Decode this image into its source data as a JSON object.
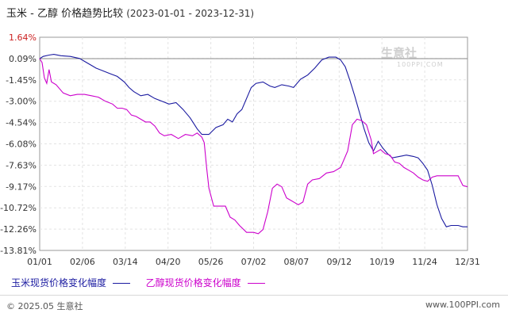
{
  "header": {
    "title": "玉米 - 乙醇 价格趋势比较",
    "range": "(2023-01-01 - 2023-12-31)"
  },
  "watermark": {
    "text": "生意社",
    "sub": "100PPI.COM"
  },
  "legend": {
    "items": [
      {
        "label": "玉米现货价格变化幅度",
        "color": "#1a1aa0"
      },
      {
        "label": "乙醇现货价格变化幅度",
        "color": "#cc00cc"
      }
    ]
  },
  "footer": {
    "left": "© 2025.05 生意社",
    "right": "www.100PPI.com"
  },
  "chart_data": {
    "type": "line",
    "title": "玉米 - 乙醇 价格趋势比较",
    "xlabel": "",
    "ylabel": "",
    "y_ticks": [
      "1.64%",
      "0.09%",
      "-1.45%",
      "-3.00%",
      "-4.54%",
      "-6.08%",
      "-7.63%",
      "-9.17%",
      "-10.72%",
      "-12.26%",
      "-13.81%"
    ],
    "x_ticks": [
      "01/01",
      "02/06",
      "03/14",
      "04/20",
      "05/26",
      "07/02",
      "08/07",
      "09/12",
      "10/19",
      "11/24",
      "12/31"
    ],
    "ylim": [
      -13.81,
      1.64
    ],
    "xlim": [
      0,
      364
    ],
    "reference_line": 0.09,
    "grid": true,
    "series": [
      {
        "name": "玉米现货价格变化幅度",
        "color": "#1a1aa0",
        "points": [
          [
            0,
            0.09
          ],
          [
            3,
            0.25
          ],
          [
            8,
            0.35
          ],
          [
            12,
            0.4
          ],
          [
            18,
            0.3
          ],
          [
            26,
            0.25
          ],
          [
            34,
            0.1
          ],
          [
            40,
            -0.2
          ],
          [
            44,
            -0.4
          ],
          [
            48,
            -0.6
          ],
          [
            54,
            -0.8
          ],
          [
            60,
            -1.0
          ],
          [
            66,
            -1.2
          ],
          [
            72,
            -1.6
          ],
          [
            76,
            -2.0
          ],
          [
            80,
            -2.3
          ],
          [
            86,
            -2.6
          ],
          [
            92,
            -2.5
          ],
          [
            98,
            -2.8
          ],
          [
            104,
            -3.0
          ],
          [
            110,
            -3.2
          ],
          [
            116,
            -3.1
          ],
          [
            122,
            -3.6
          ],
          [
            128,
            -4.2
          ],
          [
            134,
            -5.0
          ],
          [
            138,
            -5.4
          ],
          [
            144,
            -5.4
          ],
          [
            150,
            -4.9
          ],
          [
            156,
            -4.7
          ],
          [
            160,
            -4.3
          ],
          [
            164,
            -4.5
          ],
          [
            168,
            -3.9
          ],
          [
            172,
            -3.6
          ],
          [
            176,
            -2.8
          ],
          [
            180,
            -2.0
          ],
          [
            184,
            -1.7
          ],
          [
            190,
            -1.6
          ],
          [
            196,
            -1.9
          ],
          [
            200,
            -2.0
          ],
          [
            206,
            -1.8
          ],
          [
            212,
            -1.9
          ],
          [
            216,
            -2.0
          ],
          [
            222,
            -1.4
          ],
          [
            228,
            -1.1
          ],
          [
            234,
            -0.6
          ],
          [
            240,
            0.0
          ],
          [
            246,
            0.2
          ],
          [
            252,
            0.2
          ],
          [
            256,
            0.0
          ],
          [
            260,
            -0.5
          ],
          [
            264,
            -1.5
          ],
          [
            268,
            -2.6
          ],
          [
            272,
            -3.8
          ],
          [
            276,
            -5.0
          ],
          [
            280,
            -6.0
          ],
          [
            284,
            -6.6
          ],
          [
            288,
            -5.9
          ],
          [
            292,
            -6.4
          ],
          [
            296,
            -6.8
          ],
          [
            300,
            -7.1
          ],
          [
            306,
            -7.0
          ],
          [
            312,
            -6.9
          ],
          [
            318,
            -7.0
          ],
          [
            322,
            -7.1
          ],
          [
            326,
            -7.5
          ],
          [
            330,
            -8.0
          ],
          [
            334,
            -9.1
          ],
          [
            338,
            -10.5
          ],
          [
            342,
            -11.5
          ],
          [
            346,
            -12.1
          ],
          [
            350,
            -12.0
          ],
          [
            356,
            -12.0
          ],
          [
            360,
            -12.1
          ],
          [
            364,
            -12.1
          ]
        ]
      },
      {
        "name": "乙醇现货价格变化幅度",
        "color": "#cc00cc",
        "points": [
          [
            0,
            0.09
          ],
          [
            2,
            -0.2
          ],
          [
            4,
            -1.3
          ],
          [
            6,
            -1.7
          ],
          [
            8,
            -0.7
          ],
          [
            10,
            -1.6
          ],
          [
            14,
            -1.8
          ],
          [
            20,
            -2.4
          ],
          [
            26,
            -2.6
          ],
          [
            32,
            -2.5
          ],
          [
            38,
            -2.5
          ],
          [
            44,
            -2.6
          ],
          [
            50,
            -2.7
          ],
          [
            56,
            -3.0
          ],
          [
            62,
            -3.2
          ],
          [
            66,
            -3.5
          ],
          [
            70,
            -3.5
          ],
          [
            74,
            -3.6
          ],
          [
            78,
            -4.0
          ],
          [
            82,
            -4.1
          ],
          [
            86,
            -4.3
          ],
          [
            90,
            -4.5
          ],
          [
            94,
            -4.5
          ],
          [
            98,
            -4.8
          ],
          [
            102,
            -5.3
          ],
          [
            106,
            -5.5
          ],
          [
            112,
            -5.4
          ],
          [
            118,
            -5.7
          ],
          [
            124,
            -5.4
          ],
          [
            130,
            -5.5
          ],
          [
            134,
            -5.3
          ],
          [
            138,
            -5.6
          ],
          [
            140,
            -6.0
          ],
          [
            142,
            -7.8
          ],
          [
            144,
            -9.3
          ],
          [
            148,
            -10.6
          ],
          [
            154,
            -10.6
          ],
          [
            158,
            -10.6
          ],
          [
            162,
            -11.4
          ],
          [
            166,
            -11.6
          ],
          [
            170,
            -12.0
          ],
          [
            176,
            -12.5
          ],
          [
            182,
            -12.5
          ],
          [
            186,
            -12.6
          ],
          [
            190,
            -12.3
          ],
          [
            194,
            -11.0
          ],
          [
            198,
            -9.3
          ],
          [
            202,
            -9.0
          ],
          [
            206,
            -9.2
          ],
          [
            210,
            -10.0
          ],
          [
            214,
            -10.2
          ],
          [
            220,
            -10.5
          ],
          [
            224,
            -10.3
          ],
          [
            228,
            -9.0
          ],
          [
            232,
            -8.7
          ],
          [
            238,
            -8.6
          ],
          [
            244,
            -8.2
          ],
          [
            250,
            -8.1
          ],
          [
            256,
            -7.8
          ],
          [
            262,
            -6.6
          ],
          [
            266,
            -4.7
          ],
          [
            270,
            -4.3
          ],
          [
            274,
            -4.4
          ],
          [
            278,
            -4.7
          ],
          [
            282,
            -5.8
          ],
          [
            284,
            -6.8
          ],
          [
            286,
            -6.7
          ],
          [
            290,
            -6.5
          ],
          [
            294,
            -6.8
          ],
          [
            298,
            -6.9
          ],
          [
            302,
            -7.4
          ],
          [
            306,
            -7.5
          ],
          [
            310,
            -7.8
          ],
          [
            314,
            -8.0
          ],
          [
            318,
            -8.2
          ],
          [
            322,
            -8.5
          ],
          [
            326,
            -8.7
          ],
          [
            330,
            -8.8
          ],
          [
            334,
            -8.5
          ],
          [
            338,
            -8.4
          ],
          [
            344,
            -8.4
          ],
          [
            350,
            -8.4
          ],
          [
            356,
            -8.4
          ],
          [
            360,
            -9.1
          ],
          [
            364,
            -9.2
          ]
        ]
      }
    ]
  }
}
